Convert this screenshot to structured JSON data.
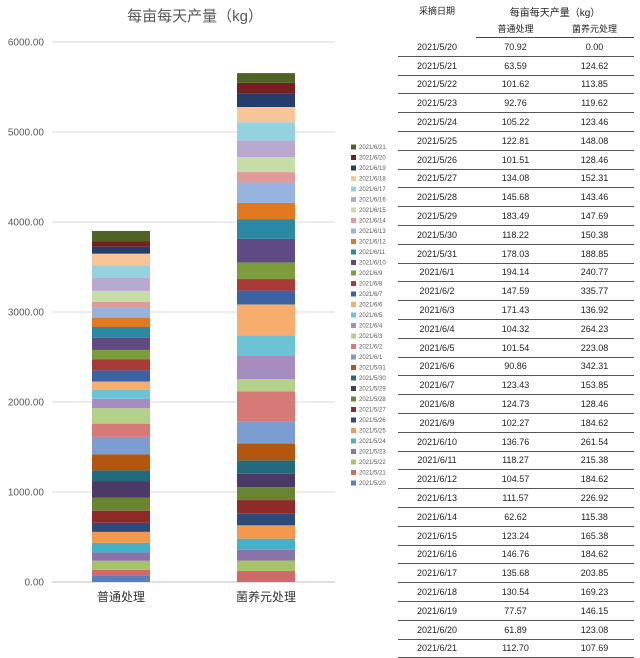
{
  "chart_data": {
    "type": "bar",
    "stacked": true,
    "title": "每亩每天产量（kg）",
    "categories": [
      "普通处理",
      "菌养元处理"
    ],
    "ylim": [
      0,
      6000
    ],
    "yticks": [
      "0.00",
      "1000.00",
      "2000.00",
      "3000.00",
      "4000.00",
      "5000.00",
      "6000.00"
    ],
    "grid": true,
    "legend_position": "right",
    "series": [
      {
        "name": "2021/5/20",
        "values": [
          70.92,
          0.0
        ],
        "color": "#5B7EC1"
      },
      {
        "name": "2021/5/21",
        "values": [
          63.59,
          124.62
        ],
        "color": "#D06A69"
      },
      {
        "name": "2021/5/22",
        "values": [
          101.62,
          113.85
        ],
        "color": "#A5C46A"
      },
      {
        "name": "2021/5/23",
        "values": [
          92.76,
          119.62
        ],
        "color": "#8A73AA"
      },
      {
        "name": "2021/5/24",
        "values": [
          105.22,
          123.46
        ],
        "color": "#47B0C6"
      },
      {
        "name": "2021/5/25",
        "values": [
          122.81,
          148.08
        ],
        "color": "#F3994E"
      },
      {
        "name": "2021/5/26",
        "values": [
          101.51,
          128.46
        ],
        "color": "#2E4A7A"
      },
      {
        "name": "2021/5/27",
        "values": [
          134.08,
          152.31
        ],
        "color": "#8E2B28"
      },
      {
        "name": "2021/5/28",
        "values": [
          145.68,
          143.46
        ],
        "color": "#6B8431"
      },
      {
        "name": "2021/5/29",
        "values": [
          183.49,
          147.69
        ],
        "color": "#4C3A66"
      },
      {
        "name": "2021/5/30",
        "values": [
          118.22,
          150.38
        ],
        "color": "#236A7E"
      },
      {
        "name": "2021/5/31",
        "values": [
          178.03,
          188.85
        ],
        "color": "#B4570E"
      },
      {
        "name": "2021/6/1",
        "values": [
          194.14,
          240.77
        ],
        "color": "#7B9DD2"
      },
      {
        "name": "2021/6/2",
        "values": [
          147.59,
          335.77
        ],
        "color": "#D77A77"
      },
      {
        "name": "2021/6/3",
        "values": [
          171.43,
          136.92
        ],
        "color": "#B4D189"
      },
      {
        "name": "2021/6/4",
        "values": [
          104.32,
          264.23
        ],
        "color": "#A58DC0"
      },
      {
        "name": "2021/6/5",
        "values": [
          101.54,
          223.08
        ],
        "color": "#6CC3D6"
      },
      {
        "name": "2021/6/6",
        "values": [
          90.86,
          342.31
        ],
        "color": "#F7AD6E"
      },
      {
        "name": "2021/6/7",
        "values": [
          123.43,
          153.85
        ],
        "color": "#3A62A4"
      },
      {
        "name": "2021/6/8",
        "values": [
          124.73,
          128.46
        ],
        "color": "#A83A38"
      },
      {
        "name": "2021/6/9",
        "values": [
          102.27,
          184.62
        ],
        "color": "#7D9C3E"
      },
      {
        "name": "2021/6/10",
        "values": [
          136.76,
          261.54
        ],
        "color": "#604A84"
      },
      {
        "name": "2021/6/11",
        "values": [
          118.27,
          215.38
        ],
        "color": "#2C89A3"
      },
      {
        "name": "2021/6/12",
        "values": [
          104.57,
          184.62
        ],
        "color": "#E0791F"
      },
      {
        "name": "2021/6/13",
        "values": [
          111.57,
          226.92
        ],
        "color": "#98B4DE"
      },
      {
        "name": "2021/6/14",
        "values": [
          62.62,
          115.38
        ],
        "color": "#E09B99"
      },
      {
        "name": "2021/6/15",
        "values": [
          123.24,
          165.38
        ],
        "color": "#C7DDA6"
      },
      {
        "name": "2021/6/16",
        "values": [
          146.76,
          184.62
        ],
        "color": "#B9A8D0"
      },
      {
        "name": "2021/6/17",
        "values": [
          135.68,
          203.85
        ],
        "color": "#94D2E0"
      },
      {
        "name": "2021/6/18",
        "values": [
          130.54,
          169.23
        ],
        "color": "#F9C598"
      },
      {
        "name": "2021/6/19",
        "values": [
          77.57,
          146.15
        ],
        "color": "#243D6A"
      },
      {
        "name": "2021/6/20",
        "values": [
          61.89,
          123.08
        ],
        "color": "#74201F"
      },
      {
        "name": "2021/6/21",
        "values": [
          112.7,
          107.69
        ],
        "color": "#4F6324"
      }
    ]
  },
  "table": {
    "title": "每亩每天产量（kg）",
    "headers": [
      "采摘日期",
      "普通处理",
      "菌养元处理"
    ],
    "rows": [
      [
        "2021/5/20",
        "70.92",
        "0.00"
      ],
      [
        "2021/5/21",
        "63.59",
        "124.62"
      ],
      [
        "2021/5/22",
        "101.62",
        "113.85"
      ],
      [
        "2021/5/23",
        "92.76",
        "119.62"
      ],
      [
        "2021/5/24",
        "105.22",
        "123.46"
      ],
      [
        "2021/5/25",
        "122.81",
        "148.08"
      ],
      [
        "2021/5/26",
        "101.51",
        "128.46"
      ],
      [
        "2021/5/27",
        "134.08",
        "152.31"
      ],
      [
        "2021/5/28",
        "145.68",
        "143.46"
      ],
      [
        "2021/5/29",
        "183.49",
        "147.69"
      ],
      [
        "2021/5/30",
        "118.22",
        "150.38"
      ],
      [
        "2021/5/31",
        "178.03",
        "188.85"
      ],
      [
        "2021/6/1",
        "194.14",
        "240.77"
      ],
      [
        "2021/6/2",
        "147.59",
        "335.77"
      ],
      [
        "2021/6/3",
        "171.43",
        "136.92"
      ],
      [
        "2021/6/4",
        "104.32",
        "264.23"
      ],
      [
        "2021/6/5",
        "101.54",
        "223.08"
      ],
      [
        "2021/6/6",
        "90.86",
        "342.31"
      ],
      [
        "2021/6/7",
        "123.43",
        "153.85"
      ],
      [
        "2021/6/8",
        "124.73",
        "128.46"
      ],
      [
        "2021/6/9",
        "102.27",
        "184.62"
      ],
      [
        "2021/6/10",
        "136.76",
        "261.54"
      ],
      [
        "2021/6/11",
        "118.27",
        "215.38"
      ],
      [
        "2021/6/12",
        "104.57",
        "184.62"
      ],
      [
        "2021/6/13",
        "111.57",
        "226.92"
      ],
      [
        "2021/6/14",
        "62.62",
        "115.38"
      ],
      [
        "2021/6/15",
        "123.24",
        "165.38"
      ],
      [
        "2021/6/16",
        "146.76",
        "184.62"
      ],
      [
        "2021/6/17",
        "135.68",
        "203.85"
      ],
      [
        "2021/6/18",
        "130.54",
        "169.23"
      ],
      [
        "2021/6/19",
        "77.57",
        "146.15"
      ],
      [
        "2021/6/20",
        "61.89",
        "123.08"
      ],
      [
        "2021/6/21",
        "112.70",
        "107.69"
      ]
    ]
  }
}
